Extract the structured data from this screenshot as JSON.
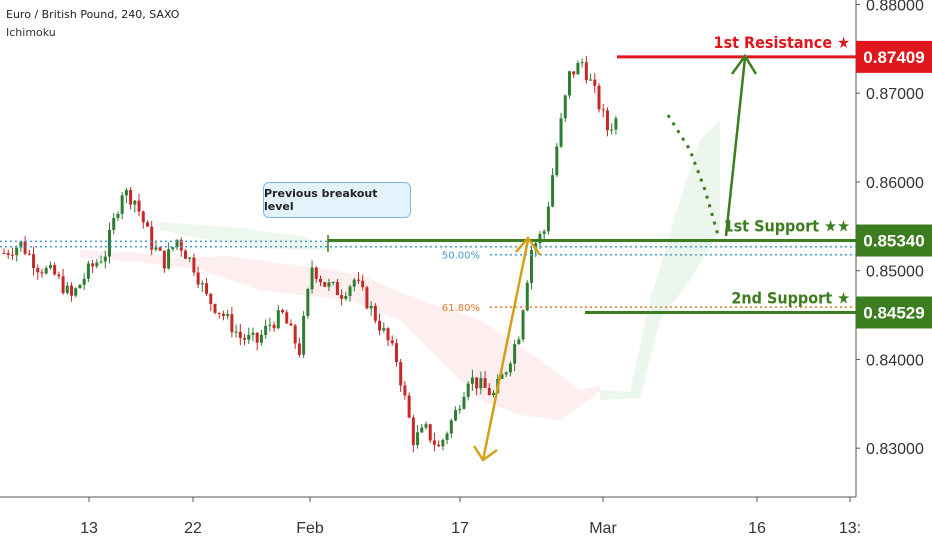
{
  "header": {
    "symbol_line": "Euro / British Pound, 240, SAXO",
    "indicator": "Ichimoku"
  },
  "annotation": {
    "bubble_text": "Previous breakout level",
    "fib_50": "50.00%",
    "fib_618": "61.80%"
  },
  "chart_data": {
    "type": "candlestick",
    "title": "",
    "x_tick_labels": [
      "13",
      "22",
      "Feb",
      "17",
      "Mar",
      "16",
      "13:"
    ],
    "y_tick_labels": [
      "0.88000",
      "0.87000",
      "0.86000",
      "0.85000",
      "0.84000",
      "0.83000"
    ],
    "y_ticks": [
      0.88,
      0.87,
      0.86,
      0.85,
      0.84,
      0.83
    ],
    "ylim": [
      0.8245,
      0.8805
    ],
    "levels": [
      {
        "name": "1st Resistance ★",
        "price": 0.87409,
        "price_label": "0.87409",
        "color": "#e0161d"
      },
      {
        "name": "1st Support ★★",
        "price": 0.8534,
        "price_label": "0.85340",
        "color": "#3c7d1f"
      },
      {
        "name": "2nd Support ★",
        "price": 0.84529,
        "price_label": "0.84529",
        "color": "#3c7d1f"
      }
    ],
    "fib_levels": [
      {
        "label": "50.00%",
        "price": 0.8518
      },
      {
        "label": "61.80%",
        "price": 0.8459
      }
    ],
    "breakout_level": [
      0.8533,
      0.8527
    ],
    "colors": {
      "up": "#2e7d32",
      "down": "#c62828",
      "resistance": "#e0161d",
      "support": "#3c7d1f",
      "fib_50": "#4a9bd1",
      "fib_618": "#e8782e",
      "arrow_fib": "#d4a017",
      "axis_text": "#333333"
    },
    "price_path": [
      [
        0.852,
        0
      ],
      [
        0.853,
        4
      ],
      [
        0.8505,
        8
      ],
      [
        0.8495,
        12
      ],
      [
        0.847,
        16
      ],
      [
        0.85,
        20
      ],
      [
        0.852,
        24
      ],
      [
        0.859,
        28
      ],
      [
        0.858,
        31
      ],
      [
        0.853,
        35
      ],
      [
        0.851,
        38
      ],
      [
        0.8535,
        41
      ],
      [
        0.8505,
        45
      ],
      [
        0.847,
        48
      ],
      [
        0.845,
        52
      ],
      [
        0.8425,
        56
      ],
      [
        0.842,
        60
      ],
      [
        0.844,
        63
      ],
      [
        0.845,
        66
      ],
      [
        0.841,
        70
      ],
      [
        0.8505,
        73
      ],
      [
        0.8485,
        76
      ],
      [
        0.8475,
        80
      ],
      [
        0.849,
        83
      ],
      [
        0.8465,
        86
      ],
      [
        0.843,
        90
      ],
      [
        0.84,
        93
      ],
      [
        0.831,
        97
      ],
      [
        0.832,
        100
      ],
      [
        0.83,
        103
      ],
      [
        0.834,
        107
      ],
      [
        0.838,
        110
      ],
      [
        0.837,
        113
      ],
      [
        0.836,
        116
      ],
      [
        0.839,
        119
      ],
      [
        0.843,
        122
      ],
      [
        0.8525,
        125
      ],
      [
        0.8545,
        128
      ],
      [
        0.864,
        131
      ],
      [
        0.872,
        134
      ],
      [
        0.8735,
        137
      ],
      [
        0.87,
        140
      ],
      [
        0.866,
        143
      ],
      [
        0.8675,
        146
      ]
    ]
  }
}
